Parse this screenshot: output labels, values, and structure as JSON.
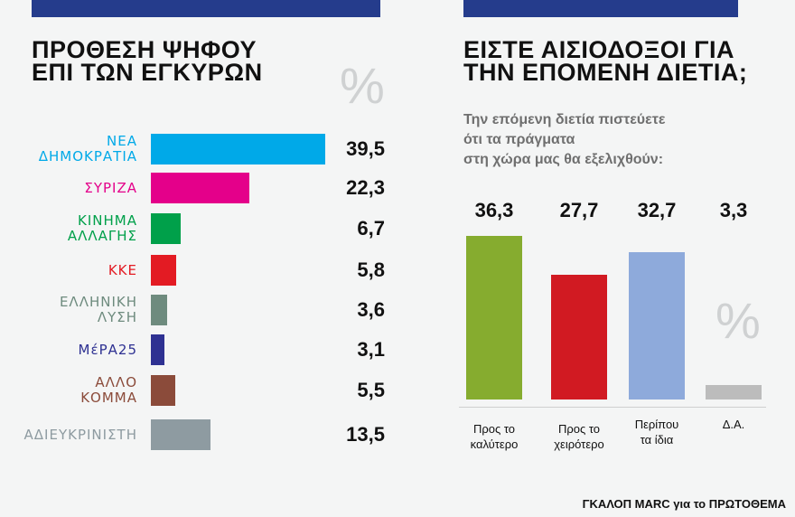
{
  "chart_data": [
    {
      "type": "bar",
      "orientation": "horizontal",
      "title": "ΠΡΟΘΕΣΗ ΨΗΦΟΥ ΕΠΙ ΤΩΝ ΕΓΚΥΡΩΝ",
      "unit": "%",
      "categories": [
        "ΝΕΑ ΔΗΜΟΚΡΑΤΙΑ",
        "ΣΥΡΙΖΑ",
        "ΚΙΝΗΜΑ ΑΛΛΑΓΗΣ",
        "ΚΚΕ",
        "ΕΛΛΗΝΙΚΗ ΛΥΣΗ",
        "ΜέΡΑ25",
        "ΑΛΛΟ ΚΟΜΜΑ",
        "ΑΔΙΕΥΚΡΙΝΙΣΤΗ"
      ],
      "label_lines": [
        [
          "ΝΕΑ",
          "ΔΗΜΟΚΡΑΤΙΑ"
        ],
        [
          "ΣΥΡΙΖΑ"
        ],
        [
          "ΚΙΝΗΜΑ",
          "ΑΛΛΑΓΗΣ"
        ],
        [
          "ΚΚΕ"
        ],
        [
          "ΕΛΛΗΝΙΚΗ",
          "ΛΥΣΗ"
        ],
        [
          "ΜέΡΑ25"
        ],
        [
          "ΑΛΛΟ",
          "ΚΟΜΜΑ"
        ],
        [
          "ΑΔΙΕΥΚΡΙΝΙΣΤΗ"
        ]
      ],
      "values": [
        39.5,
        22.3,
        6.7,
        5.8,
        3.6,
        3.1,
        5.5,
        13.5
      ],
      "value_labels": [
        "39,5",
        "22,3",
        "6,7",
        "5,8",
        "3,6",
        "3,1",
        "5,5",
        "13,5"
      ],
      "colors": [
        "#00a9e8",
        "#e4008a",
        "#00a04a",
        "#e31b23",
        "#6e8b7e",
        "#2e3192",
        "#8b4b3a",
        "#8e9ba1"
      ]
    },
    {
      "type": "bar",
      "title": "ΕΙΣΤΕ ΑΙΣΙΟΔΟΞΟΙ ΓΙΑ ΤΗΝ ΕΠΟΜΕΝΗ ΔΙΕΤΙΑ;",
      "subtitle": "Την επόμενη διετία πιστεύετε ότι τα πράγματα στη χώρα μας θα εξελιχθούν:",
      "subtitle_lines": [
        "Την επόμενη διετία πιστεύετε",
        "ότι τα πράγματα",
        "στη χώρα μας θα εξελιχθούν:"
      ],
      "unit": "%",
      "categories": [
        "Προς το καλύτερο",
        "Προς το χειρότερο",
        "Περίπου τα ίδια",
        "Δ.Α."
      ],
      "label_lines": [
        [
          "Προς το",
          "καλύτερο"
        ],
        [
          "Προς το",
          "χειρότερο"
        ],
        [
          "Περίπου",
          "τα ίδια"
        ],
        [
          "Δ.Α."
        ]
      ],
      "values": [
        36.3,
        27.7,
        32.7,
        3.3
      ],
      "value_labels": [
        "36,3",
        "27,7",
        "32,7",
        "3,3"
      ],
      "colors": [
        "#86ac2f",
        "#d11a22",
        "#8eaadb",
        "#bcbcbc"
      ]
    }
  ],
  "left": {
    "title_lines": [
      "ΠΡΟΘΕΣΗ ΨΗΦΟΥ",
      "ΕΠΙ ΤΩΝ ΕΓΚΥΡΩΝ"
    ],
    "percent": "%"
  },
  "right": {
    "title_lines": [
      "ΕΙΣΤΕ ΑΙΣΙΟΔΟΞΟΙ ΓΙΑ",
      "ΤΗΝ ΕΠΟΜΕΝΗ ΔΙΕΤΙΑ;"
    ],
    "percent": "%"
  },
  "source": "ΓΚΑΛΟΠ MARC για το ΠΡΩΤΟΘΕΜΑ",
  "colors": {
    "header_strip": "#253c8c",
    "background": "#f4f5f5"
  }
}
